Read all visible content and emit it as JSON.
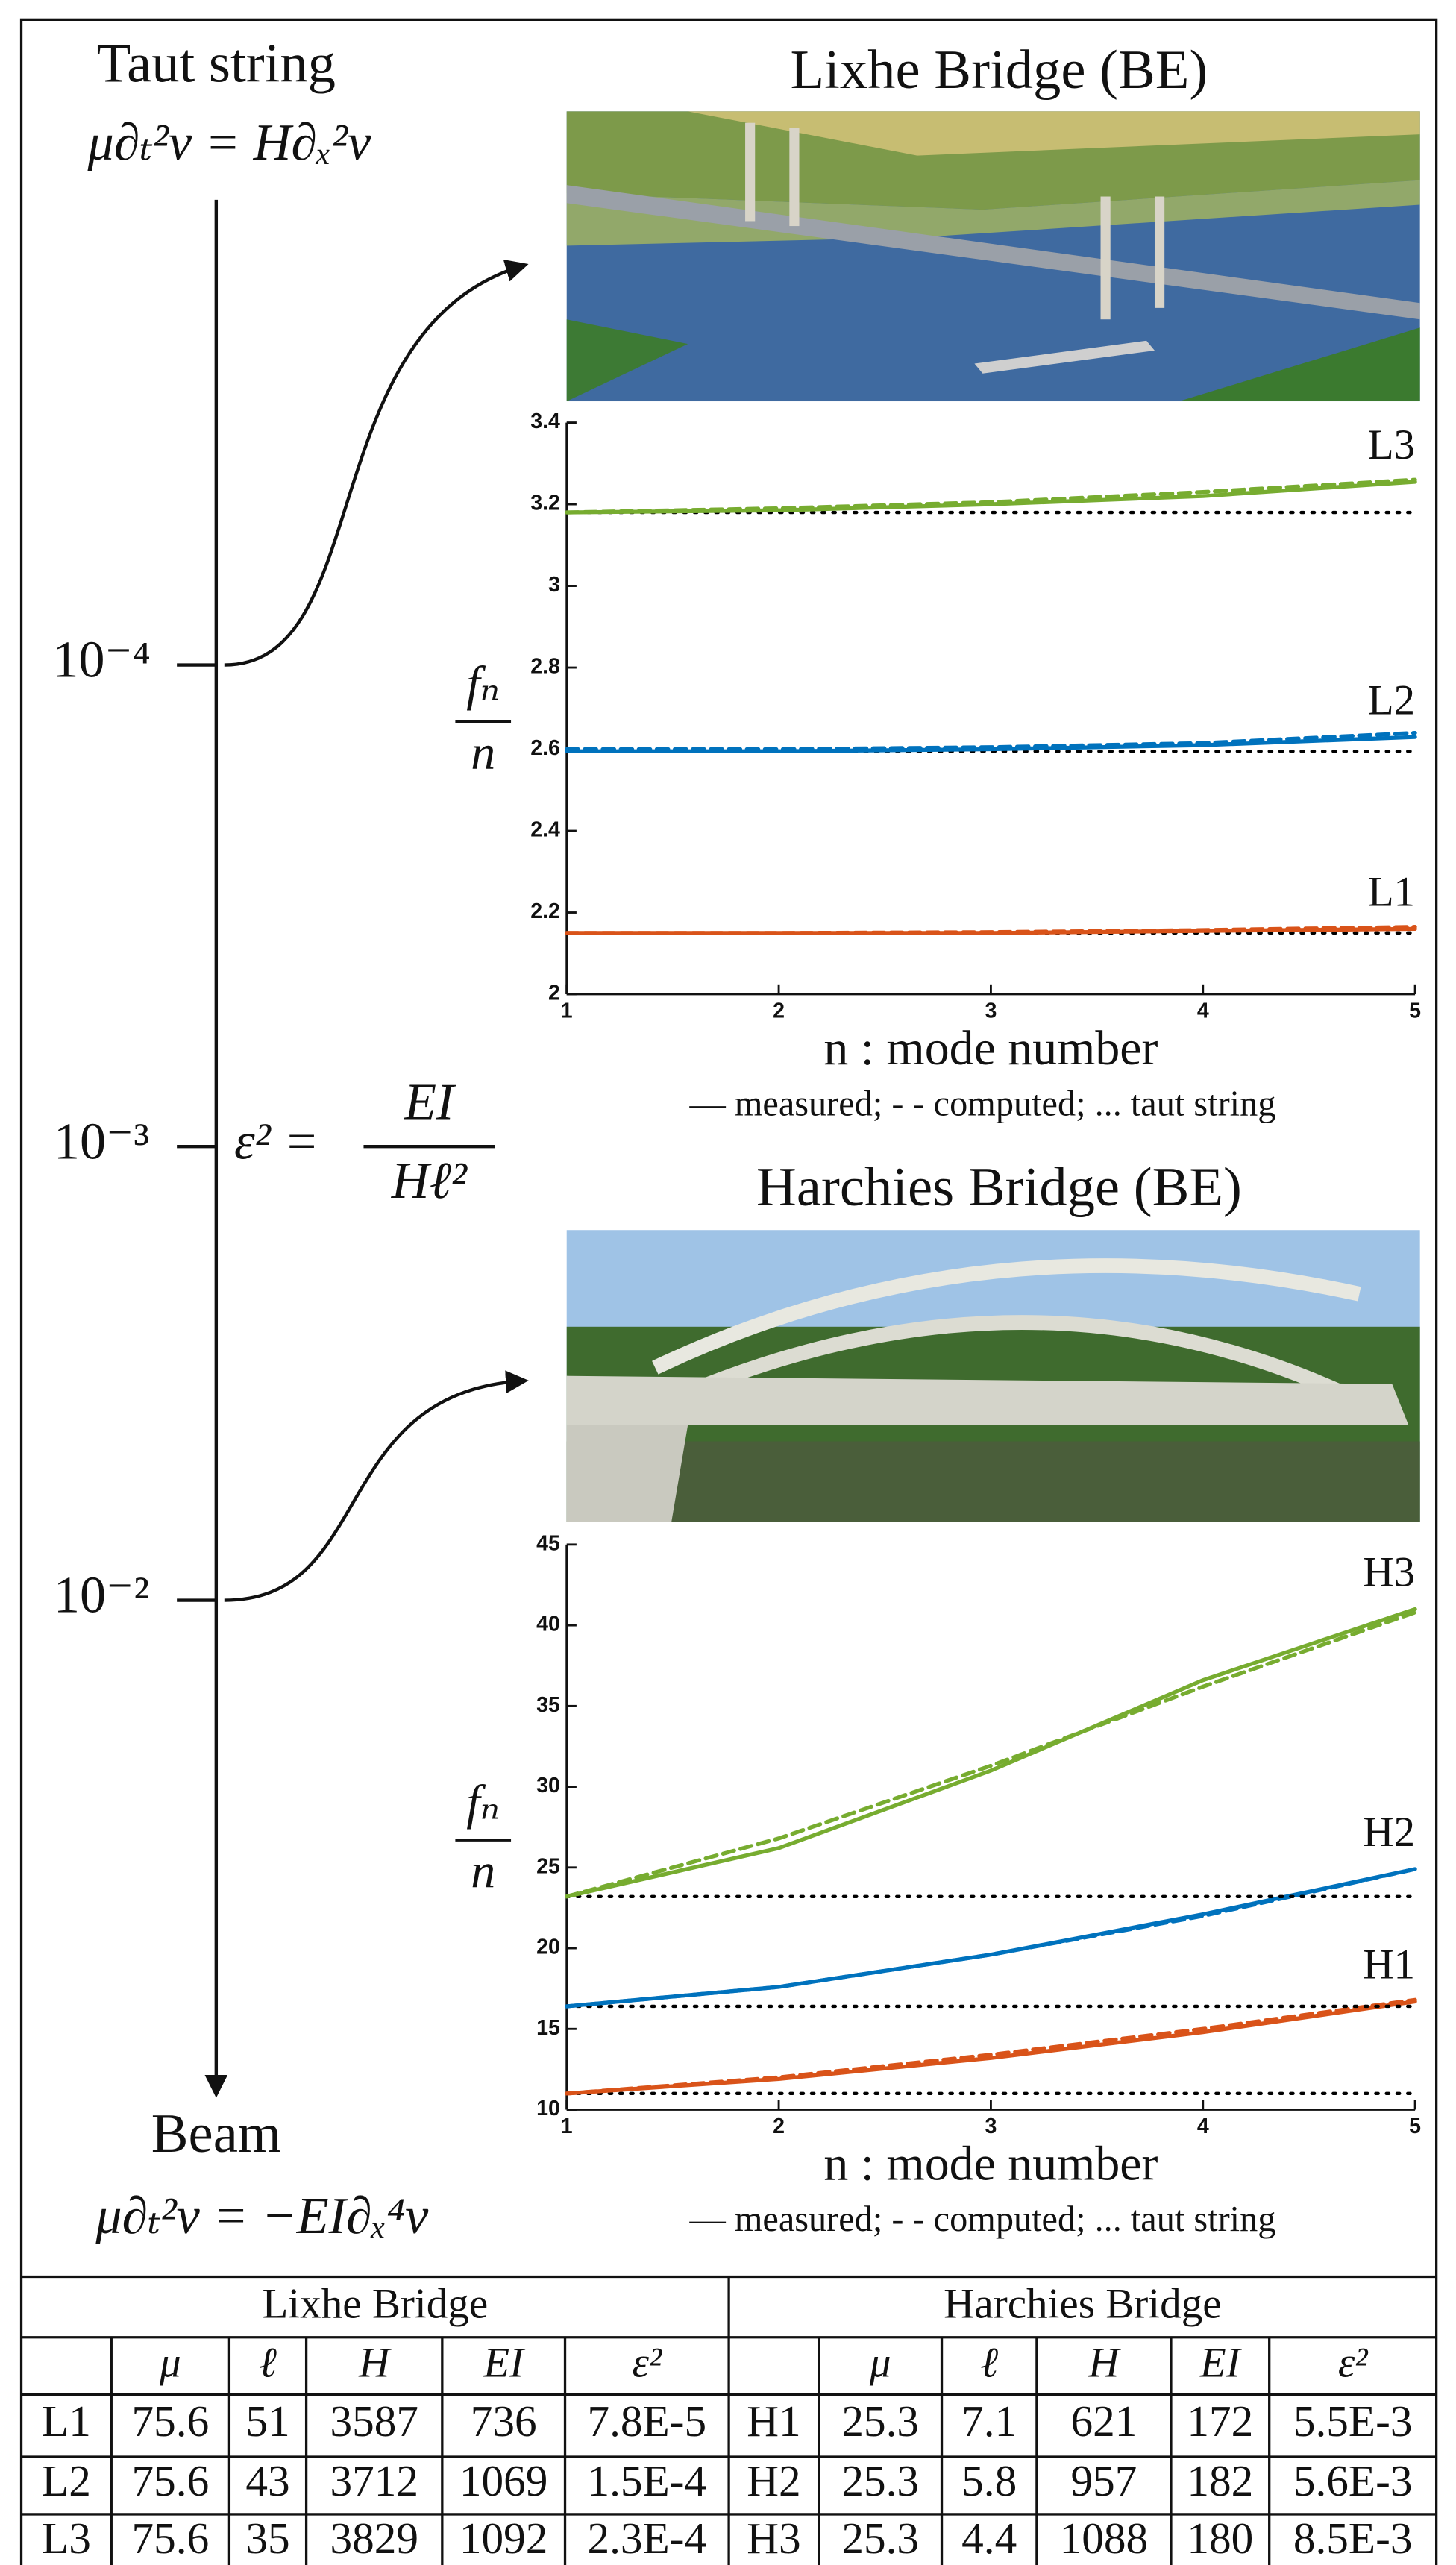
{
  "diagram": {
    "top_label": "Taut string",
    "top_equation": "μ∂ₜ²v = H∂ₓ²v",
    "scale_labels": [
      "10⁻⁴",
      "10⁻³",
      "10⁻²"
    ],
    "parameter": {
      "symbol": "ε² =",
      "numerator": "EI",
      "denominator": "Hℓ²"
    },
    "bottom_label": "Beam",
    "bottom_equation": "μ∂ₜ²v = −EI∂ₓ⁴v"
  },
  "chart_data": [
    {
      "type": "line",
      "title": "Lixhe Bridge (BE)",
      "x_label": "n : mode number",
      "y_label": {
        "numerator": "fₙ",
        "denominator": "n"
      },
      "legend_note": "— measured; - - computed; ... taut string",
      "x": [
        1,
        2,
        3,
        4,
        5
      ],
      "xlim": [
        1,
        5
      ],
      "xticks": [
        1,
        2,
        3,
        4,
        5
      ],
      "ylim": [
        2,
        3.4
      ],
      "yticks": [
        2,
        2.2,
        2.4,
        2.6,
        2.8,
        3,
        3.2,
        3.4
      ],
      "grid": false,
      "series": [
        {
          "line_style": "dotted",
          "color": "#000000",
          "values": [
            2.15,
            2.15,
            2.15,
            2.15,
            2.15
          ]
        },
        {
          "line_style": "dashed",
          "color": "#d95319",
          "values": [
            2.15,
            2.15,
            2.152,
            2.157,
            2.165
          ]
        },
        {
          "name": "L1",
          "line_style": "solid",
          "color": "#d95319",
          "values": [
            2.15,
            2.15,
            2.15,
            2.155,
            2.16
          ]
        },
        {
          "line_style": "dotted",
          "color": "#000000",
          "values": [
            2.595,
            2.595,
            2.595,
            2.595,
            2.595
          ]
        },
        {
          "line_style": "dashed",
          "color": "#0072bd",
          "values": [
            2.6,
            2.6,
            2.605,
            2.615,
            2.64
          ]
        },
        {
          "name": "L2",
          "line_style": "solid",
          "color": "#0072bd",
          "values": [
            2.595,
            2.595,
            2.6,
            2.61,
            2.63
          ]
        },
        {
          "line_style": "dotted",
          "color": "#000000",
          "values": [
            3.18,
            3.18,
            3.18,
            3.18,
            3.18
          ]
        },
        {
          "line_style": "dashed",
          "color": "#77ac30",
          "values": [
            3.18,
            3.19,
            3.205,
            3.23,
            3.26
          ]
        },
        {
          "name": "L3",
          "line_style": "solid",
          "color": "#77ac30",
          "values": [
            3.18,
            3.185,
            3.2,
            3.22,
            3.255
          ]
        }
      ]
    },
    {
      "type": "line",
      "title": "Harchies Bridge (BE)",
      "x_label": "n : mode number",
      "y_label": {
        "numerator": "fₙ",
        "denominator": "n"
      },
      "legend_note": "— measured; - - computed; ... taut string",
      "x": [
        1,
        2,
        3,
        4,
        5
      ],
      "xlim": [
        1,
        5
      ],
      "xticks": [
        1,
        2,
        3,
        4,
        5
      ],
      "ylim": [
        10,
        45
      ],
      "yticks": [
        10,
        15,
        20,
        25,
        30,
        35,
        40,
        45
      ],
      "grid": false,
      "series": [
        {
          "line_style": "dotted",
          "color": "#000000",
          "values": [
            11,
            11,
            11,
            11,
            11
          ]
        },
        {
          "line_style": "dashed",
          "color": "#d95319",
          "values": [
            11,
            12,
            13.4,
            15,
            16.8
          ]
        },
        {
          "name": "H1",
          "line_style": "solid",
          "color": "#d95319",
          "values": [
            11,
            11.9,
            13.2,
            14.8,
            16.7
          ]
        },
        {
          "line_style": "dotted",
          "color": "#000000",
          "values": [
            16.4,
            16.4,
            16.4,
            16.4,
            16.4
          ]
        },
        {
          "line_style": "dashed",
          "color": "#0072bd",
          "values": [
            16.4,
            17.6,
            19.6,
            22,
            24.9
          ]
        },
        {
          "name": "H2",
          "line_style": "solid",
          "color": "#0072bd",
          "values": [
            16.4,
            17.6,
            19.6,
            22.1,
            24.9
          ]
        },
        {
          "line_style": "dotted",
          "color": "#000000",
          "values": [
            23.2,
            23.2,
            23.2,
            23.2,
            23.2
          ]
        },
        {
          "line_style": "dashed",
          "color": "#77ac30",
          "values": [
            23.2,
            26.8,
            31.3,
            36.2,
            40.8
          ]
        },
        {
          "name": "H3",
          "line_style": "solid",
          "color": "#77ac30",
          "values": [
            23.2,
            26.2,
            31,
            36.6,
            41
          ]
        }
      ]
    }
  ],
  "table": {
    "groups": [
      "Lixhe Bridge",
      "Harchies Bridge"
    ],
    "columns": [
      "μ",
      "ℓ",
      "H",
      "EI",
      "ε²"
    ],
    "rows": [
      [
        "L1",
        "75.6",
        "51",
        "3587",
        "736",
        "7.8E-5",
        "H1",
        "25.3",
        "7.1",
        "621",
        "172",
        "5.5E-3"
      ],
      [
        "L2",
        "75.6",
        "43",
        "3712",
        "1069",
        "1.5E-4",
        "H2",
        "25.3",
        "5.8",
        "957",
        "182",
        "5.6E-3"
      ],
      [
        "L3",
        "75.6",
        "35",
        "3829",
        "1092",
        "2.3E-4",
        "H3",
        "25.3",
        "4.4",
        "1088",
        "180",
        "8.5E-3"
      ]
    ]
  }
}
